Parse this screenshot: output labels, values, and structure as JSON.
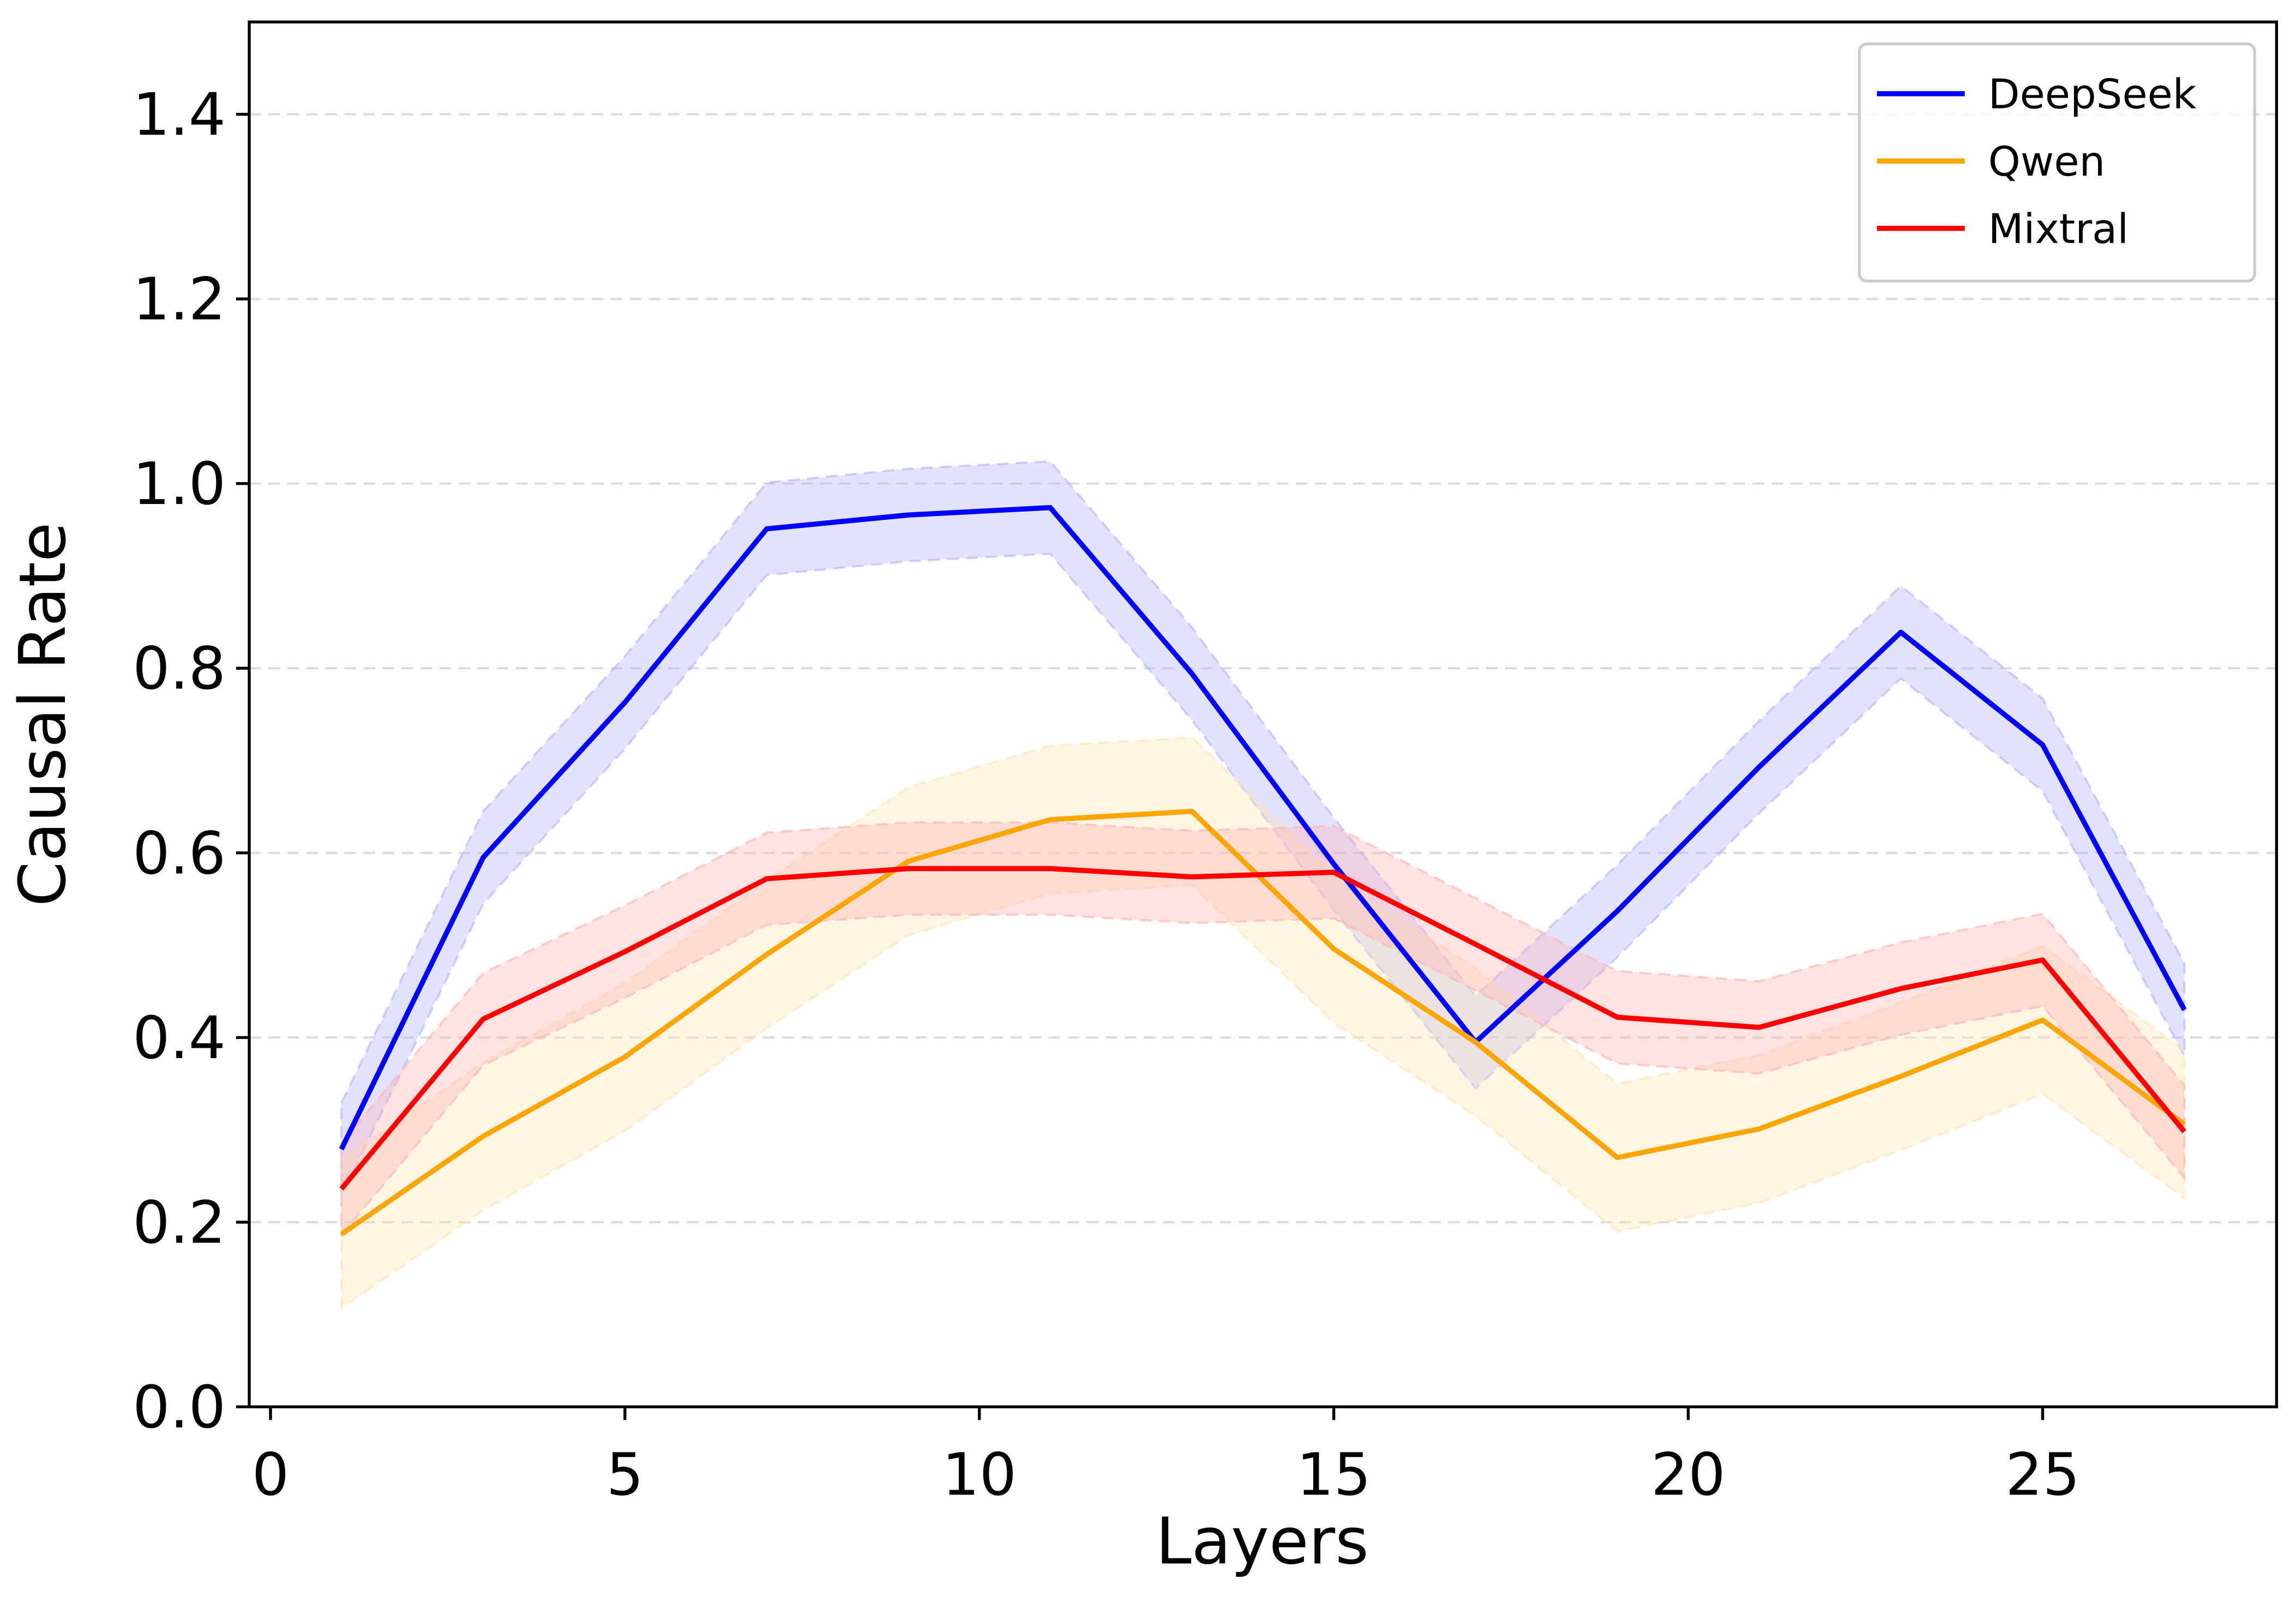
{
  "chart_data": {
    "type": "line",
    "x_label": "Layers",
    "y_label": "Causal Rate",
    "x": [
      1,
      3,
      5,
      7,
      9,
      11,
      13,
      15,
      17,
      19,
      21,
      23,
      25,
      27
    ],
    "series": [
      {
        "name": "DeepSeek",
        "color": "#0000ff",
        "band_color": "#b0b0ff",
        "values": [
          0.279,
          0.595,
          0.763,
          0.951,
          0.966,
          0.974,
          0.794,
          0.588,
          0.395,
          0.537,
          0.693,
          0.839,
          0.717,
          0.43
        ],
        "errors": [
          0.05,
          0.05,
          0.05,
          0.05,
          0.05,
          0.05,
          0.05,
          0.05,
          0.05,
          0.05,
          0.05,
          0.05,
          0.05,
          0.05
        ]
      },
      {
        "name": "Qwen",
        "color": "#ffa500",
        "band_color": "#ffe2b0",
        "values": [
          0.187,
          0.293,
          0.379,
          0.49,
          0.591,
          0.636,
          0.645,
          0.496,
          0.395,
          0.27,
          0.301,
          0.358,
          0.419,
          0.306
        ],
        "errors": [
          0.08,
          0.08,
          0.08,
          0.08,
          0.08,
          0.08,
          0.08,
          0.08,
          0.08,
          0.08,
          0.08,
          0.08,
          0.08,
          0.08
        ]
      },
      {
        "name": "Mixtral",
        "color": "#ff0000",
        "band_color": "#ffb0b0",
        "values": [
          0.236,
          0.42,
          0.493,
          0.572,
          0.583,
          0.583,
          0.574,
          0.579,
          0.501,
          0.422,
          0.411,
          0.453,
          0.484,
          0.298
        ],
        "errors": [
          0.05,
          0.05,
          0.05,
          0.05,
          0.05,
          0.05,
          0.05,
          0.05,
          0.05,
          0.05,
          0.05,
          0.05,
          0.05,
          0.05
        ]
      }
    ],
    "xlim": [
      -0.3,
      28.3
    ],
    "ylim": [
      0,
      1.5
    ],
    "xticks": [
      0,
      5,
      10,
      15,
      20,
      25
    ],
    "yticks": [
      {
        "value": 0,
        "label": "0.0"
      },
      0.2,
      0.4,
      0.6,
      0.8,
      {
        "value": 1,
        "label": "1.0"
      },
      1.2,
      1.4
    ],
    "grid": "y",
    "legend_loc": "upper right"
  }
}
